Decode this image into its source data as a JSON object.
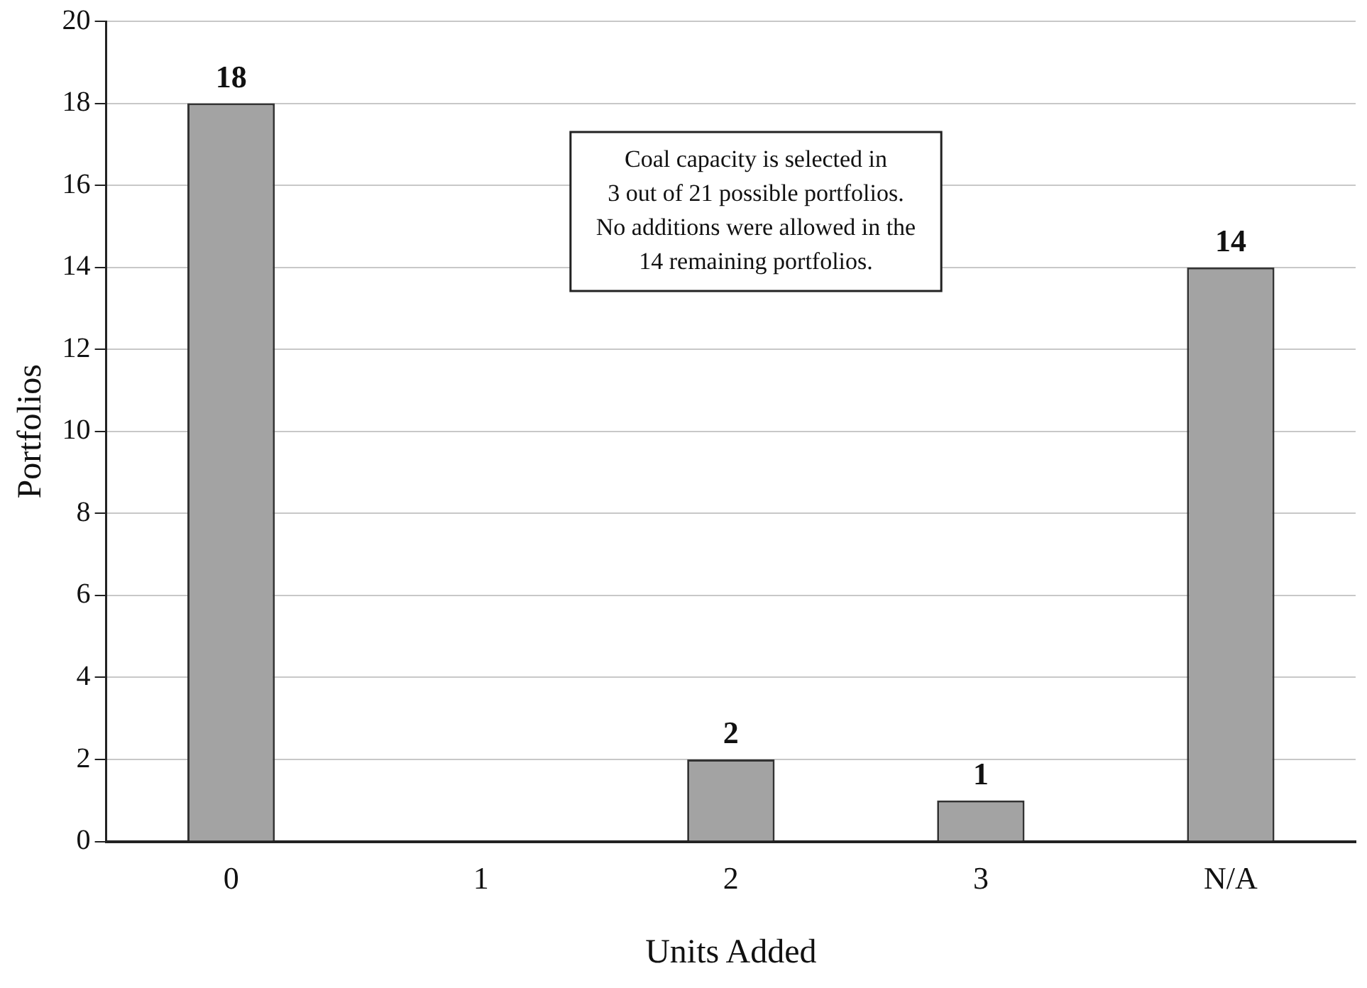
{
  "chart_data": {
    "type": "bar",
    "xlabel": "Units Added",
    "ylabel": "Portfolios",
    "categories": [
      "0",
      "1",
      "2",
      "3",
      "N/A"
    ],
    "values": [
      18,
      0,
      2,
      1,
      14
    ],
    "value_labels": [
      "18",
      null,
      "2",
      "1",
      "14"
    ],
    "color": "#a3a3a3",
    "ylim": [
      0,
      20
    ],
    "yticks": [
      0,
      2,
      4,
      6,
      8,
      10,
      12,
      14,
      16,
      18,
      20
    ],
    "grid": "y",
    "legend": false,
    "annotations": [
      "Coal capacity is selected in\n3 out of 21 possible portfolios.\nNo additions were allowed in the\n14 remaining portfolios."
    ]
  }
}
